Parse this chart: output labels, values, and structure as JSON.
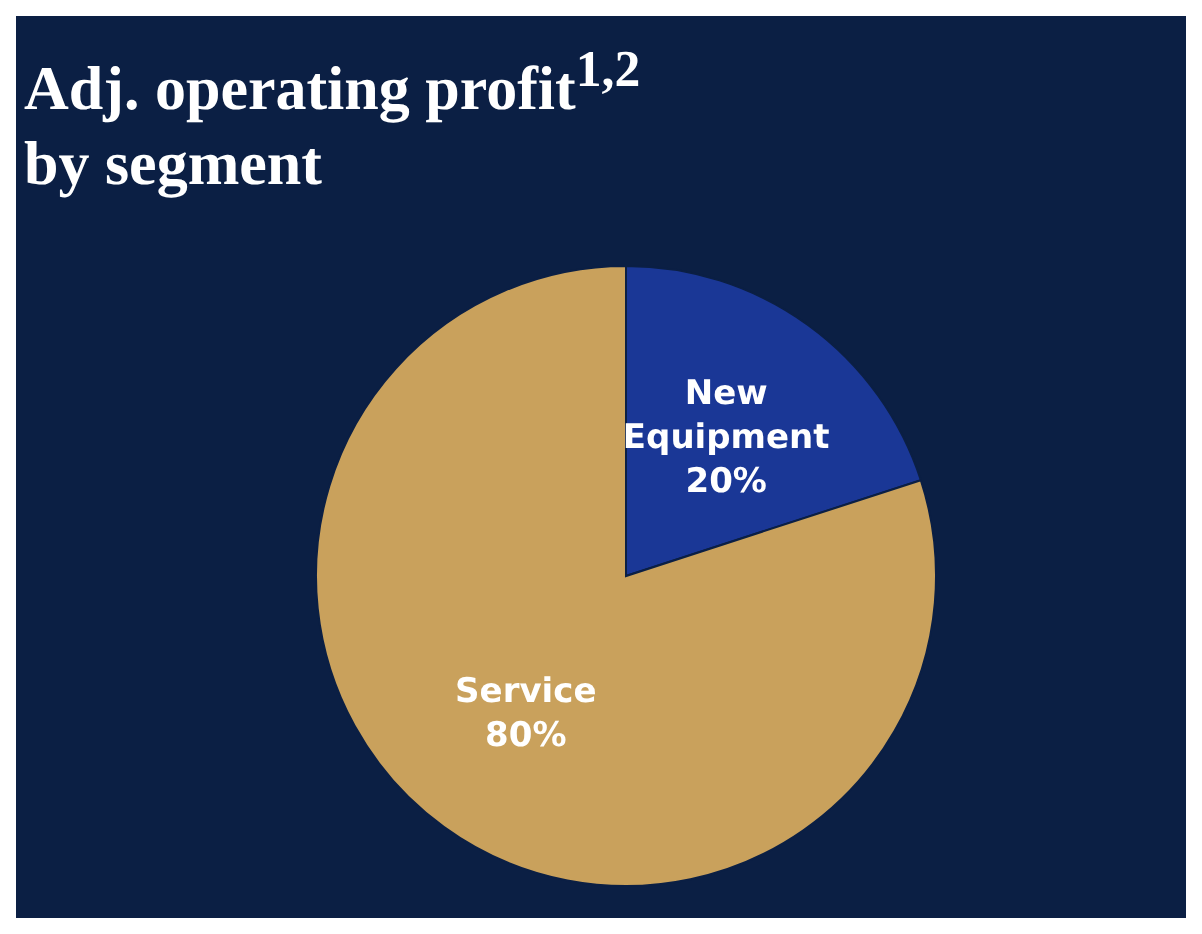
{
  "chart_data": {
    "type": "pie",
    "title": "Adj. operating profit$^{1,2}$ by segment",
    "categories": [
      "New Equipment",
      "Service"
    ],
    "values": [
      20,
      80
    ],
    "value_labels": [
      "20%",
      "80%"
    ],
    "colors": [
      "#1a3796",
      "#c9a15c"
    ]
  }
}
